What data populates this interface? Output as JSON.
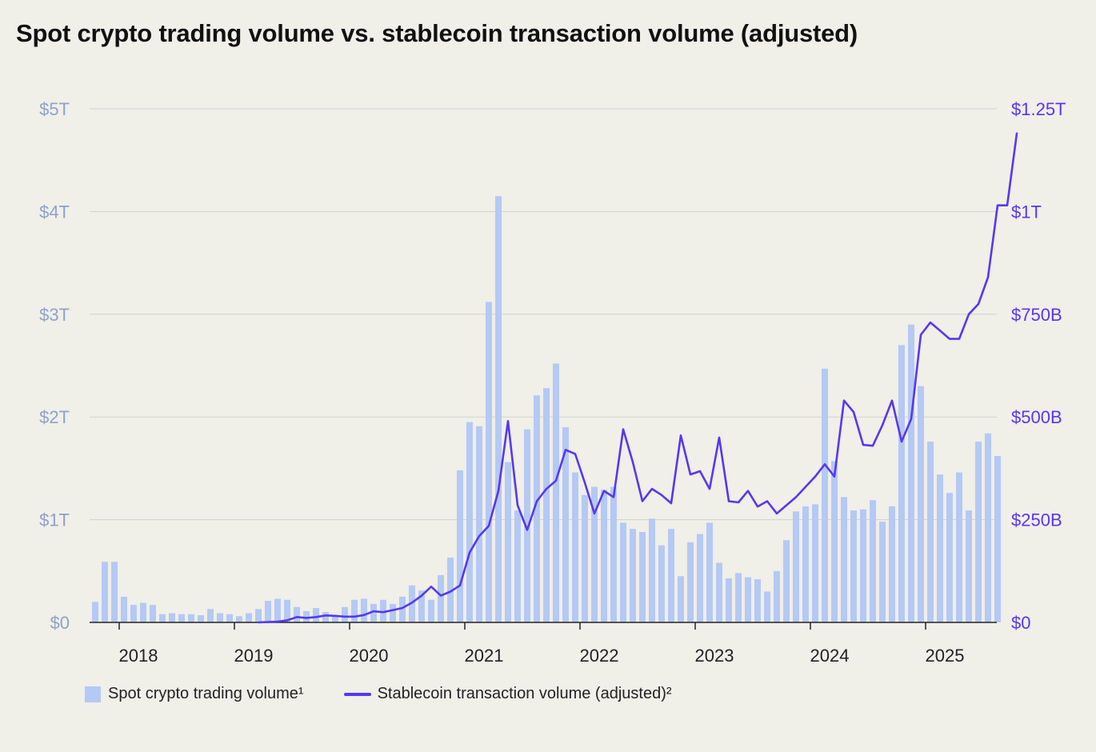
{
  "chart_data": {
    "type": "bar+line",
    "title": "Spot crypto trading volume vs. stablecoin transaction volume (adjusted)",
    "x_tick_labels": [
      "2018",
      "2019",
      "2020",
      "2021",
      "2022",
      "2023",
      "2024",
      "2025"
    ],
    "x_tick_months": [
      3,
      15,
      27,
      39,
      51,
      63,
      75,
      87
    ],
    "y_left": {
      "ticks": [
        "$0",
        "$1T",
        "$2T",
        "$3T",
        "$4T",
        "$5T"
      ],
      "tick_values": [
        0,
        1,
        2,
        3,
        4,
        5
      ],
      "ylim": [
        0,
        5
      ],
      "unit": "trillions USD"
    },
    "y_right": {
      "ticks": [
        "$0",
        "$250B",
        "$500B",
        "$750B",
        "$1T",
        "$1.25T"
      ],
      "tick_values": [
        0,
        250,
        500,
        750,
        1000,
        1250
      ],
      "ylim": [
        0,
        1250
      ],
      "unit": "billions USD"
    },
    "start_month": "2017-10",
    "series": [
      {
        "name": "Spot crypto trading volume¹",
        "type": "bar",
        "color": "#b4c9f4",
        "axis": "left",
        "values": [
          0.2,
          0.59,
          0.59,
          0.25,
          0.17,
          0.19,
          0.17,
          0.08,
          0.09,
          0.08,
          0.08,
          0.07,
          0.13,
          0.09,
          0.08,
          0.06,
          0.09,
          0.13,
          0.21,
          0.23,
          0.22,
          0.15,
          0.11,
          0.14,
          0.1,
          0.06,
          0.15,
          0.22,
          0.23,
          0.18,
          0.22,
          0.18,
          0.25,
          0.36,
          0.31,
          0.22,
          0.46,
          0.63,
          1.48,
          1.95,
          1.91,
          3.12,
          4.15,
          1.56,
          1.09,
          1.88,
          2.21,
          2.28,
          2.52,
          1.9,
          1.46,
          1.24,
          1.32,
          1.29,
          1.32,
          0.97,
          0.91,
          0.88,
          1.01,
          0.75,
          0.91,
          0.45,
          0.78,
          0.86,
          0.97,
          0.58,
          0.43,
          0.48,
          0.44,
          0.42,
          0.3,
          0.5,
          0.8,
          1.08,
          1.13,
          1.15,
          2.47,
          1.57,
          1.22,
          1.09,
          1.1,
          1.19,
          0.98,
          1.13,
          2.7,
          2.9,
          2.3,
          1.76,
          1.44,
          1.26,
          1.46,
          1.09,
          1.76,
          1.84,
          1.62
        ]
      },
      {
        "name": "Stablecoin transaction volume (adjusted)²",
        "type": "line",
        "color": "#5538f0",
        "axis": "right",
        "start_index": 17,
        "values": [
          0,
          1,
          2,
          5,
          13,
          11,
          13,
          17,
          16,
          14,
          14,
          18,
          27,
          25,
          30,
          35,
          48,
          65,
          87,
          65,
          75,
          90,
          170,
          210,
          235,
          320,
          490,
          285,
          225,
          295,
          325,
          345,
          420,
          410,
          340,
          265,
          320,
          305,
          470,
          390,
          295,
          325,
          310,
          290,
          455,
          360,
          368,
          325,
          450,
          295,
          292,
          320,
          282,
          295,
          265,
          285,
          305,
          330,
          355,
          385,
          355,
          540,
          512,
          432,
          430,
          480,
          540,
          440,
          495,
          700,
          730,
          710,
          690,
          690,
          750,
          775,
          840,
          1015,
          1015,
          1190
        ]
      }
    ],
    "legend": {
      "bar_label": "Spot crypto trading volume¹",
      "line_label": "Stablecoin transaction volume (adjusted)²",
      "placement": "bottom-left"
    }
  }
}
